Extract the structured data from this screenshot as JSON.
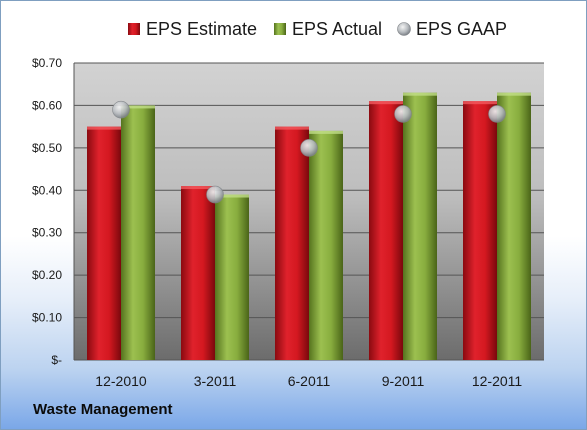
{
  "chart_data": {
    "type": "bar",
    "title": "",
    "xlabel": "",
    "ylabel": "",
    "categories": [
      "12-2010",
      "3-2011",
      "6-2011",
      "9-2011",
      "12-2011"
    ],
    "series": [
      {
        "name": "EPS Estimate",
        "type": "bar",
        "color": "#c8141e",
        "values": [
          0.55,
          0.41,
          0.55,
          0.61,
          0.61
        ]
      },
      {
        "name": "EPS Actual",
        "type": "bar",
        "color": "#7ea33a",
        "values": [
          0.6,
          0.39,
          0.54,
          0.63,
          0.63
        ]
      },
      {
        "name": "EPS GAAP",
        "type": "scatter",
        "color": "#b0b8c0",
        "values": [
          0.59,
          0.39,
          0.5,
          0.58,
          0.58
        ]
      }
    ],
    "ylim": [
      0,
      0.7
    ],
    "yticks": [
      0,
      0.1,
      0.2,
      0.3,
      0.4,
      0.5,
      0.6,
      0.7
    ],
    "ytick_labels": [
      "$-",
      "$0.10",
      "$0.20",
      "$0.30",
      "$0.40",
      "$0.50",
      "$0.60",
      "$0.70"
    ],
    "grid": true,
    "legend_position": "top"
  },
  "footer": {
    "company": "Waste Management"
  }
}
